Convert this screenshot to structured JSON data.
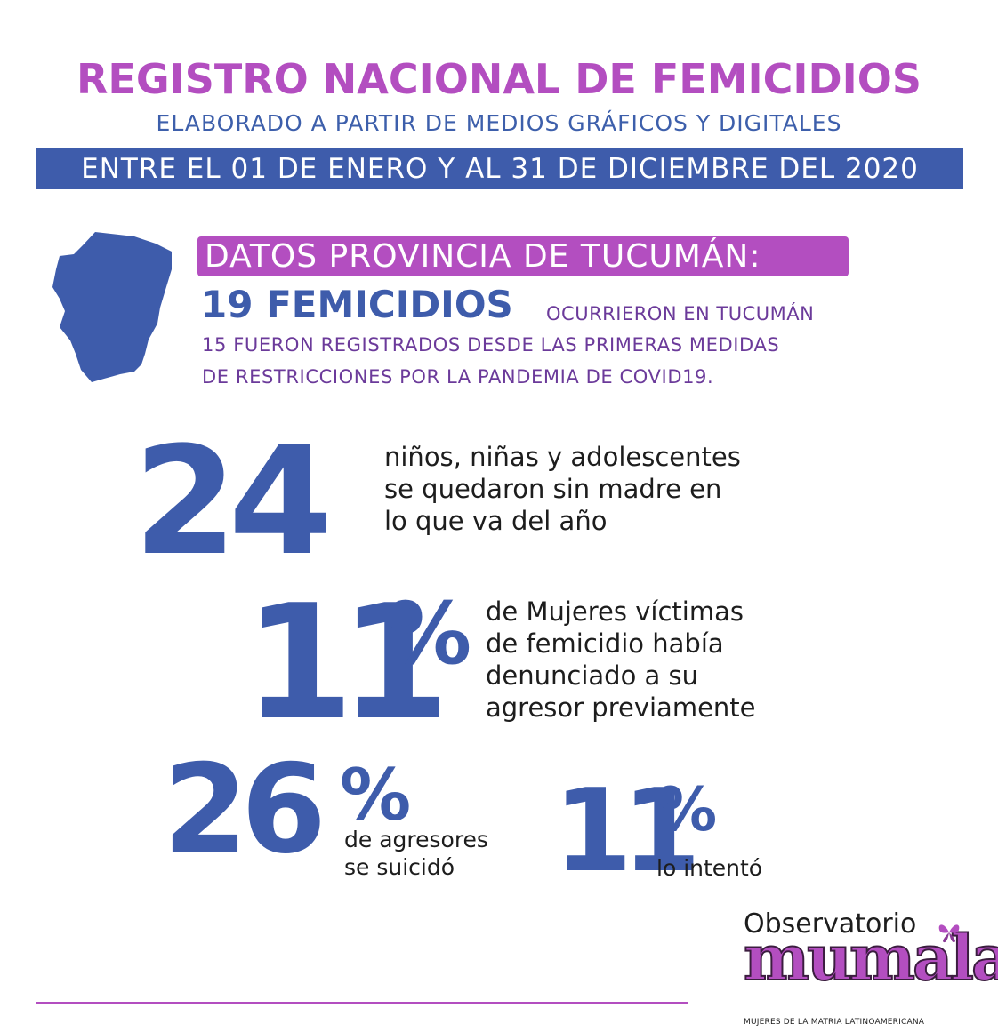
{
  "header": {
    "title": "REGISTRO NACIONAL DE FEMICIDIOS",
    "subtitle": "ELABORADO A PARTIR DE MEDIOS GRÁFICOS Y DIGITALES",
    "date_range": "ENTRE EL 01 DE ENERO Y AL 31 DE DICIEMBRE DEL 2020"
  },
  "province": {
    "heading": "DATOS PROVINCIA DE TUCUMÁN:",
    "femicides_count": "19 FEMICIDIOS",
    "femicides_text": "OCURRIERON EN TUCUMÁN",
    "covid_line1": "15 FUERON REGISTRADOS DESDE LAS PRIMERAS MEDIDAS",
    "covid_line2": "DE RESTRICCIONES POR LA PANDEMIA DE COVID19."
  },
  "stats": {
    "children": {
      "value": "24",
      "line1": "niños, niñas y adolescentes",
      "line2": "se quedaron sin madre en",
      "line3": "lo que va del año"
    },
    "reported": {
      "value": "11",
      "unit": "%",
      "line1": "de Mujeres víctimas",
      "line2": "de femicidio había",
      "line3": "denunciado a su",
      "line4": "agresor previamente"
    },
    "suicide": {
      "value": "26",
      "unit": "%",
      "line1": "de agresores",
      "line2": "se suicidó"
    },
    "attempted": {
      "value": "11",
      "unit": "%",
      "line1": "lo intentó"
    }
  },
  "logo": {
    "top": "Observatorio",
    "name": "mumala",
    "tagline": "MUJERES DE LA MATRIA LATINOAMERICANA"
  },
  "colors": {
    "purple": "#b34ec0",
    "blue": "#3e5cab",
    "dark_purple": "#6b3a9a"
  }
}
